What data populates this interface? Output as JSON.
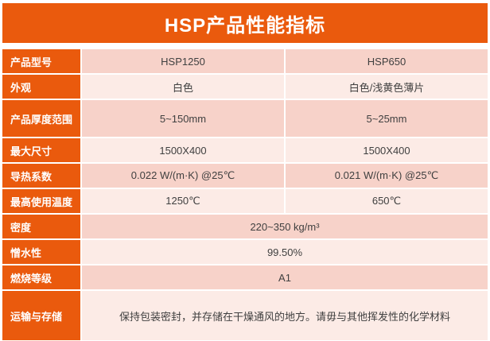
{
  "title": "HSP产品性能指标",
  "colors": {
    "accent_orange": "#EA5A0D",
    "row_dark_pink": "#F7D2C9",
    "row_light_pink": "#FCEBE6",
    "text_dark": "#404040",
    "text_light": "#FFFFFF"
  },
  "table": {
    "columns": [
      "HSP1250",
      "HSP650"
    ],
    "rows": [
      {
        "label": "产品型号",
        "values": [
          "HSP1250",
          "HSP650"
        ],
        "span": false,
        "shade": "dark"
      },
      {
        "label": "外观",
        "values": [
          "白色",
          "白色/浅黄色薄片"
        ],
        "span": false,
        "shade": "light"
      },
      {
        "label": "产品厚度范围",
        "values": [
          "5~150mm",
          "5~25mm"
        ],
        "span": false,
        "shade": "dark"
      },
      {
        "label": "最大尺寸",
        "values": [
          "1500X400",
          "1500X400"
        ],
        "span": false,
        "shade": "light"
      },
      {
        "label": "导热系数",
        "values": [
          "0.022 W/(m·K) @25℃",
          "0.021 W/(m·K) @25℃"
        ],
        "span": false,
        "shade": "dark"
      },
      {
        "label": "最高使用温度",
        "values": [
          "1250℃",
          "650℃"
        ],
        "span": false,
        "shade": "light"
      },
      {
        "label": "密度",
        "values": [
          "220~350 kg/m³"
        ],
        "span": true,
        "shade": "dark"
      },
      {
        "label": "憎水性",
        "values": [
          "99.50%"
        ],
        "span": true,
        "shade": "light"
      },
      {
        "label": "燃烧等级",
        "values": [
          "A1"
        ],
        "span": true,
        "shade": "dark"
      },
      {
        "label": "运输与存储",
        "values": [
          "保持包装密封，并存储在干燥通风的地方。请毋与其他挥发性的化学材料"
        ],
        "span": true,
        "shade": "light"
      }
    ]
  }
}
